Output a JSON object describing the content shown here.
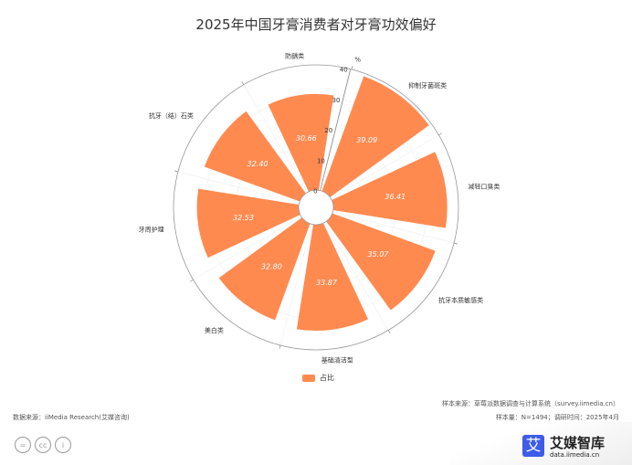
{
  "title": "2025年中国牙膏消费者对牙膏功效偏好",
  "chart_data": {
    "type": "polar-bar",
    "title": "2025年中国牙膏消费者对牙膏功效偏好",
    "unit": "%",
    "categories": [
      "防龋类",
      "抑制牙菌斑类",
      "减轻口臭类",
      "抗牙本质敏感类",
      "基础清洁型",
      "美白类",
      "牙周护理",
      "抗牙（结）石类"
    ],
    "series": [
      {
        "name": "占比",
        "values": [
          30.66,
          39.09,
          36.41,
          35.07,
          33.87,
          32.8,
          32.53,
          32.4
        ]
      }
    ],
    "rlim": [
      0,
      40
    ],
    "rticks": [
      "0",
      "10",
      "20",
      "30",
      "40"
    ],
    "color": "#ff8a50",
    "legend": "bottom",
    "grid": true
  },
  "footer": {
    "source": "数据来源：iiMedia Research(艾媒咨询)",
    "sample_source": "样本来源：草莓派数据调查与计算系统（survey.iimedia.cn）",
    "sample_info": "样本量：N=1494；调研时间：2025年4月",
    "cc_icons": [
      "=",
      "cc",
      "i"
    ],
    "logo_name": "艾媒智库",
    "logo_mark": "艾",
    "logo_url": "data.iimedia.cn"
  }
}
